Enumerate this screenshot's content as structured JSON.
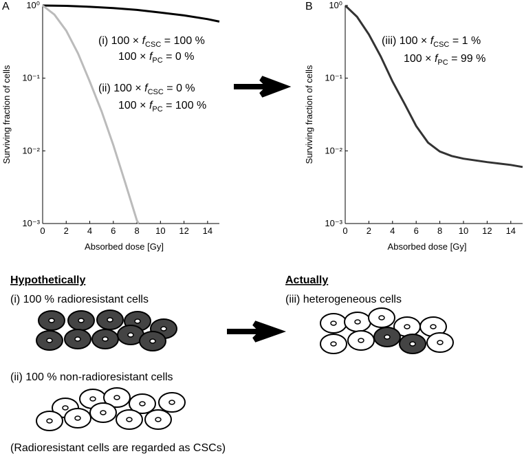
{
  "chart_data": [
    {
      "type": "line",
      "panel": "A",
      "xlabel": "Absorbed dose [Gy]",
      "ylabel": "Surviving fraction of cells",
      "log_y": true,
      "xlim": [
        0,
        15
      ],
      "ylim": [
        0.001,
        1
      ],
      "xticks": [
        0,
        2,
        4,
        6,
        8,
        10,
        12,
        14
      ],
      "yticks": [
        {
          "value": 0.001,
          "label": "10⁻³"
        },
        {
          "value": 0.01,
          "label": "10⁻²"
        },
        {
          "value": 0.1,
          "label": "10⁻¹"
        },
        {
          "value": 1,
          "label": "10⁰"
        }
      ],
      "series": [
        {
          "color": "#000000",
          "x": [
            0,
            2,
            4,
            6,
            8,
            10,
            12,
            14,
            15
          ],
          "values": [
            1,
            0.99,
            0.96,
            0.92,
            0.87,
            0.8,
            0.73,
            0.65,
            0.6
          ]
        },
        {
          "color": "#bbbbbb",
          "x": [
            0,
            1,
            2,
            3,
            4,
            5,
            6,
            7,
            8,
            8.15
          ],
          "values": [
            1,
            0.75,
            0.45,
            0.22,
            0.09,
            0.035,
            0.012,
            0.0037,
            0.0011,
            0.001
          ]
        }
      ],
      "annotations": [
        {
          "parts": [
            "(i) 100 × ",
            "f",
            "CSC",
            " = 100 %"
          ]
        },
        {
          "parts": [
            "100 × ",
            "f",
            "PC",
            "  = 0 %"
          ]
        },
        {
          "parts": [
            "(ii) 100 × ",
            "f",
            "CSC",
            " = 0 %"
          ]
        },
        {
          "parts": [
            "100 × ",
            "f",
            "PC",
            "  = 100 %"
          ]
        }
      ]
    },
    {
      "type": "line",
      "panel": "B",
      "xlabel": "Absorbed dose [Gy]",
      "ylabel": "Surviving fraction of cells",
      "log_y": true,
      "xlim": [
        0,
        15
      ],
      "ylim": [
        0.001,
        1
      ],
      "xticks": [
        0,
        2,
        4,
        6,
        8,
        10,
        12,
        14
      ],
      "yticks": [
        {
          "value": 0.001,
          "label": "10⁻³"
        },
        {
          "value": 0.01,
          "label": "10⁻²"
        },
        {
          "value": 0.1,
          "label": "10⁻¹"
        },
        {
          "value": 1,
          "label": "10⁰"
        }
      ],
      "series": [
        {
          "color": "#333333",
          "x": [
            0,
            1,
            2,
            3,
            4,
            5,
            6,
            7,
            8,
            9,
            10,
            11,
            12,
            13,
            14,
            15
          ],
          "values": [
            1,
            0.7,
            0.4,
            0.2,
            0.09,
            0.045,
            0.022,
            0.013,
            0.0098,
            0.0085,
            0.0078,
            0.0074,
            0.007,
            0.0067,
            0.0064,
            0.006
          ]
        }
      ],
      "annotations": [
        {
          "parts": [
            "(iii) 100 × ",
            "f",
            "CSC",
            " = 1 %"
          ]
        },
        {
          "parts": [
            "100 × ",
            "f",
            "PC",
            "   = 99 %"
          ]
        }
      ]
    }
  ],
  "diagram": {
    "left_heading": "Hypothetically",
    "right_heading": "Actually",
    "group_i": "(i)  100 % radioresistant cells",
    "group_ii": "(ii)  100 % non-radioresistant cells",
    "group_iii": "(iii)  heterogeneous cells",
    "note": "(Radioresistant cells are regarded as CSCs)"
  }
}
